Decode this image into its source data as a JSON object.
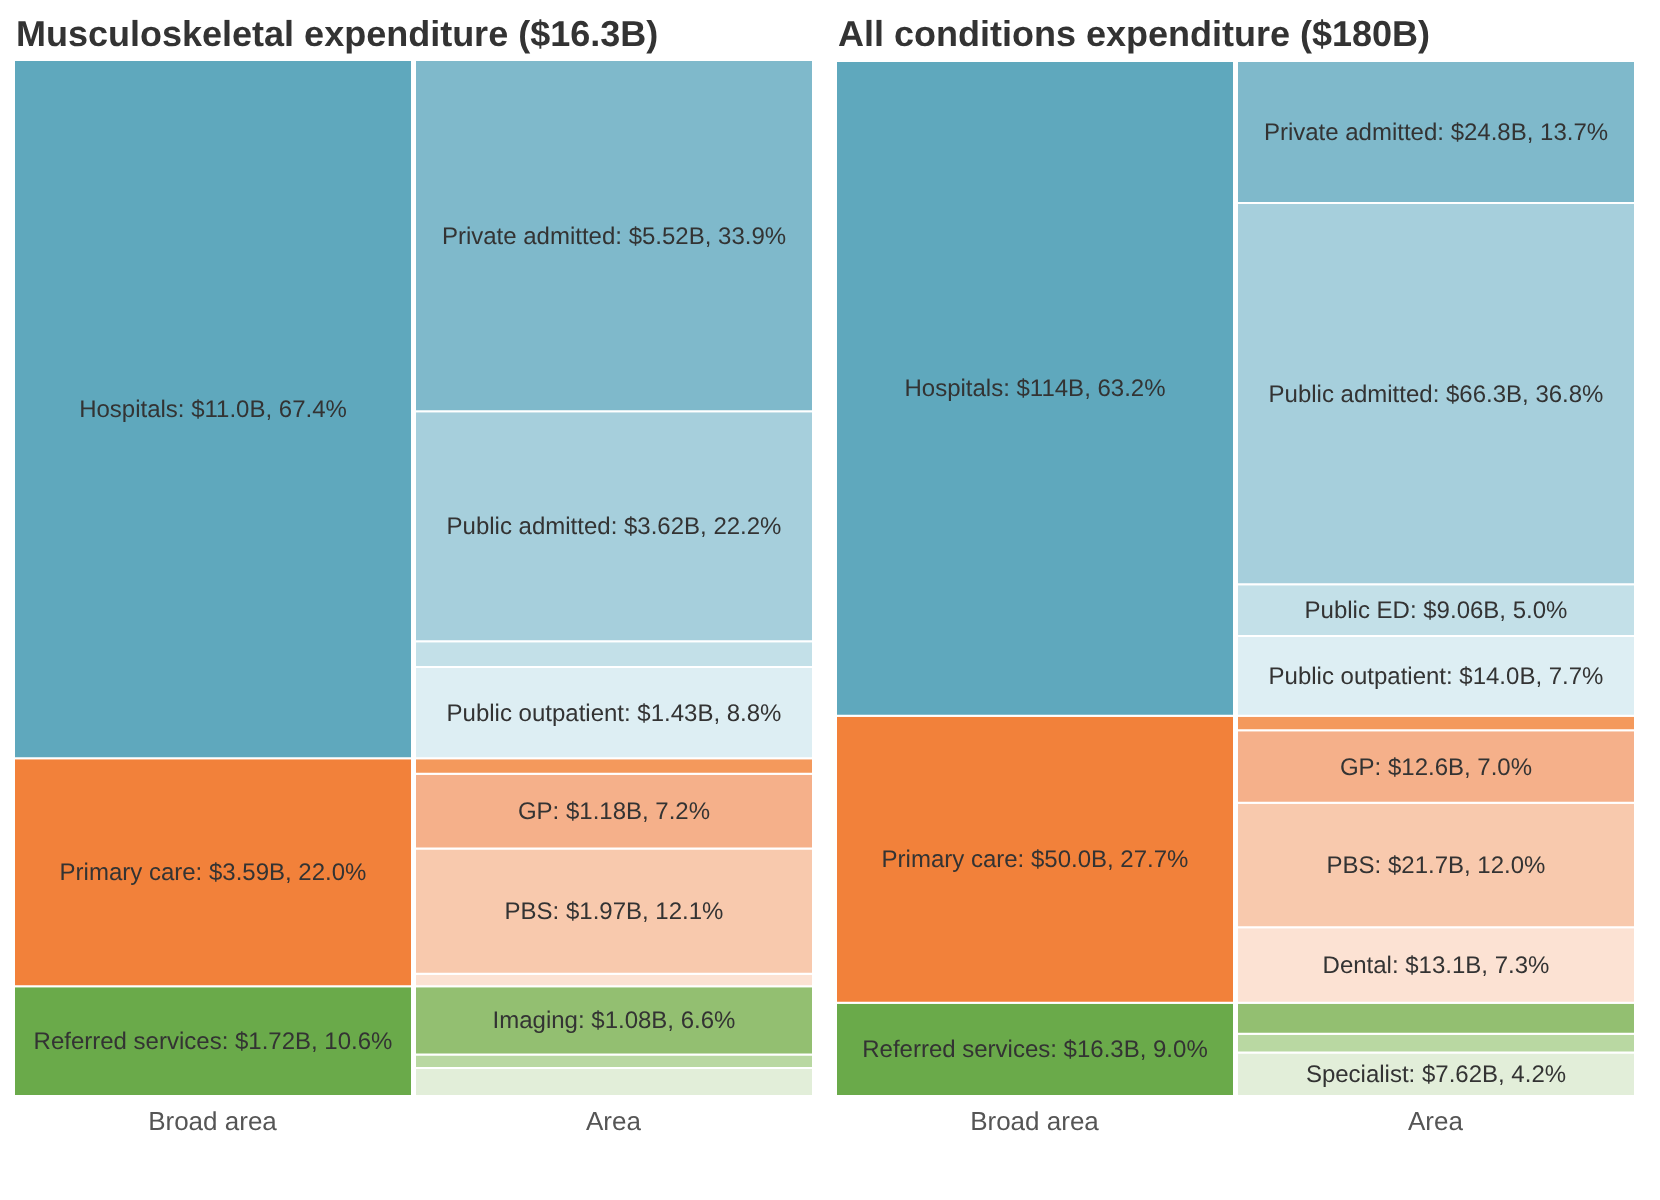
{
  "chart_data": [
    {
      "type": "bar",
      "title": "Musculoskeletal expenditure ($16.3B)",
      "stacked": true,
      "tick_labels": "x",
      "ylim": [
        0,
        100
      ],
      "categories": [
        "Broad area",
        "Area"
      ],
      "series": [
        {
          "color": "#6aaa4a",
          "values": [
            10.6,
            null
          ],
          "value_labels": [
            "Referred services: $1.72B, 10.6%",
            null
          ]
        },
        {
          "color": "#e2eed9",
          "values": [
            null,
            2.7
          ],
          "value_labels": [
            null,
            null
          ]
        },
        {
          "color": "#b9d8a2",
          "values": [
            null,
            1.3
          ],
          "value_labels": [
            null,
            null
          ]
        },
        {
          "color": "#93bf71",
          "values": [
            null,
            6.6
          ],
          "value_labels": [
            null,
            "Imaging: $1.08B, 6.6%"
          ]
        },
        {
          "color": "#f2813a",
          "values": [
            22.0,
            null
          ],
          "value_labels": [
            "Primary care: $3.59B, 22.0%",
            null
          ]
        },
        {
          "color": "#fce2d3",
          "values": [
            null,
            1.2
          ],
          "value_labels": [
            null,
            null
          ]
        },
        {
          "color": "#f8c9ad",
          "values": [
            null,
            12.1
          ],
          "value_labels": [
            null,
            "PBS: $1.97B, 12.1%"
          ]
        },
        {
          "color": "#f5b08a",
          "values": [
            null,
            7.2
          ],
          "value_labels": [
            null,
            "GP: $1.18B, 7.2%"
          ]
        },
        {
          "color": "#f4995c",
          "values": [
            null,
            1.5
          ],
          "value_labels": [
            null,
            null
          ]
        },
        {
          "color": "#5fa8bd",
          "values": [
            67.4,
            null
          ],
          "value_labels": [
            "Hospitals: $11.0B, 67.4%",
            null
          ]
        },
        {
          "color": "#ddeef3",
          "values": [
            null,
            8.8
          ],
          "value_labels": [
            null,
            "Public outpatient: $1.43B, 8.8%"
          ]
        },
        {
          "color": "#c3e0e8",
          "values": [
            null,
            2.5
          ],
          "value_labels": [
            null,
            null
          ]
        },
        {
          "color": "#a6cfdc",
          "values": [
            null,
            22.2
          ],
          "value_labels": [
            null,
            "Public admitted: $3.62B, 22.2%"
          ]
        },
        {
          "color": "#7fb9cb",
          "values": [
            null,
            33.9
          ],
          "value_labels": [
            null,
            "Private admitted: $5.52B, 33.9%"
          ]
        }
      ]
    },
    {
      "type": "bar",
      "title": "All conditions expenditure ($180B)",
      "stacked": true,
      "tick_labels": "x",
      "ylim": [
        0,
        100
      ],
      "categories": [
        "Broad area",
        "Area"
      ],
      "series": [
        {
          "color": "#6aaa4a",
          "values": [
            9.0,
            null
          ],
          "value_labels": [
            "Referred services: $16.3B, 9.0%",
            null
          ]
        },
        {
          "color": "#e2eed9",
          "values": [
            null,
            4.2
          ],
          "value_labels": [
            null,
            "Specialist: $7.62B, 4.2%"
          ]
        },
        {
          "color": "#b9d8a2",
          "values": [
            null,
            1.8
          ],
          "value_labels": [
            null,
            null
          ]
        },
        {
          "color": "#93bf71",
          "values": [
            null,
            3.0
          ],
          "value_labels": [
            null,
            null
          ]
        },
        {
          "color": "#f2813a",
          "values": [
            27.7,
            null
          ],
          "value_labels": [
            "Primary care: $50.0B, 27.7%",
            null
          ]
        },
        {
          "color": "#fce2d3",
          "values": [
            null,
            7.3
          ],
          "value_labels": [
            null,
            "Dental: $13.1B, 7.3%"
          ]
        },
        {
          "color": "#f8c9ad",
          "values": [
            null,
            12.0
          ],
          "value_labels": [
            null,
            "PBS: $21.7B, 12.0%"
          ]
        },
        {
          "color": "#f5b08a",
          "values": [
            null,
            7.0
          ],
          "value_labels": [
            null,
            "GP: $12.6B, 7.0%"
          ]
        },
        {
          "color": "#f4995c",
          "values": [
            null,
            1.4
          ],
          "value_labels": [
            null,
            null
          ]
        },
        {
          "color": "#5fa8bd",
          "values": [
            63.2,
            null
          ],
          "value_labels": [
            "Hospitals: $114B, 63.2%",
            null
          ]
        },
        {
          "color": "#ddeef3",
          "values": [
            null,
            7.7
          ],
          "value_labels": [
            null,
            "Public outpatient: $14.0B, 7.7%"
          ]
        },
        {
          "color": "#c3e0e8",
          "values": [
            null,
            5.0
          ],
          "value_labels": [
            null,
            "Public ED: $9.06B, 5.0%"
          ]
        },
        {
          "color": "#a6cfdc",
          "values": [
            null,
            36.8
          ],
          "value_labels": [
            null,
            "Public admitted: $66.3B, 36.8%"
          ]
        },
        {
          "color": "#7fb9cb",
          "values": [
            null,
            13.7
          ],
          "value_labels": [
            null,
            "Private admitted: $24.8B, 13.7%"
          ]
        }
      ]
    }
  ]
}
